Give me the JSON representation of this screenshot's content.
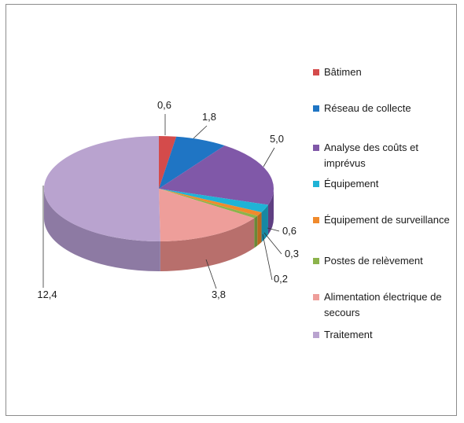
{
  "chart_data": {
    "type": "pie",
    "style": "3d-exploded-none",
    "slices": [
      {
        "name": "Bâtimen",
        "value": 0.6,
        "label": "0,6",
        "color": "#d44b4b",
        "side": "#a53636"
      },
      {
        "name": "Réseau de collecte",
        "value": 1.8,
        "label": "1,8",
        "color": "#1f75c4",
        "side": "#155b9a"
      },
      {
        "name": "Analyse des coûts et imprévus",
        "value": 5.0,
        "label": "5,0",
        "color": "#8058a8",
        "side": "#5f3f82"
      },
      {
        "name": "Équipement",
        "value": 0.6,
        "label": "0,6",
        "color": "#1fb3d6",
        "side": "#1788a3"
      },
      {
        "name": "Équipement de surveillance",
        "value": 0.3,
        "label": "0,3",
        "color": "#f08a2c",
        "side": "#b86820"
      },
      {
        "name": "Postes de relèvement",
        "value": 0.2,
        "label": "0,2",
        "color": "#8cb34b",
        "side": "#6a8838"
      },
      {
        "name": "Alimentation électrique de secours",
        "value": 3.8,
        "label": "3,8",
        "color": "#ee9e9a",
        "side": "#b86f6c"
      },
      {
        "name": "Traitement",
        "value": 12.4,
        "label": "12,4",
        "color": "#b9a3cf",
        "side": "#8d7aa3"
      }
    ],
    "legend_position": "right"
  }
}
